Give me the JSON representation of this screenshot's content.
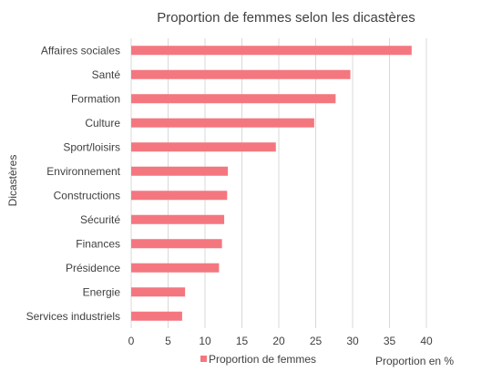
{
  "chart_data": {
    "type": "bar",
    "orientation": "horizontal",
    "title": "Proportion de femmes selon les dicastères",
    "ylabel": "Dicastères",
    "xlabel": "Proportion en %",
    "categories": [
      "Affaires sociales",
      "Santé",
      "Formation",
      "Culture",
      "Sport/loisirs",
      "Environnement",
      "Constructions",
      "Sécurité",
      "Finances",
      "Présidence",
      "Energie",
      "Services industriels"
    ],
    "series": [
      {
        "name": "Proportion de femmes",
        "color": "#f4777f",
        "values": [
          38,
          29.7,
          27.7,
          24.8,
          19.6,
          13.1,
          13,
          12.6,
          12.3,
          11.9,
          7.3,
          6.9
        ]
      }
    ],
    "xlim": [
      0,
      40
    ],
    "xticks": [
      "0",
      "5",
      "10",
      "15",
      "20",
      "25",
      "30",
      "35",
      "40"
    ],
    "grid": "vertical",
    "legend": "bottom"
  }
}
